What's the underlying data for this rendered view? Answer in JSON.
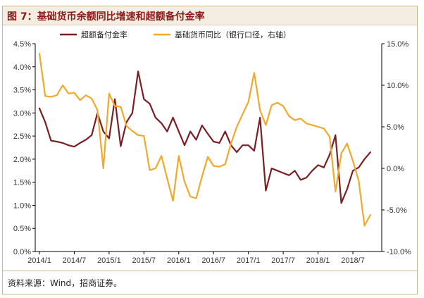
{
  "title": "图 7：基础货币余额同比增速和超额备付金率",
  "source": "资料来源：Wind，招商证券。",
  "chart_data": {
    "type": "line",
    "title": "图 7：基础货币余额同比增速和超额备付金率",
    "xlabel": "",
    "ylabel": "",
    "legend_position": "top",
    "grid": false,
    "x_ticks": [
      "2014/1",
      "2014/7",
      "2015/1",
      "2015/7",
      "2016/1",
      "2016/7",
      "2017/1",
      "2017/7",
      "2018/1",
      "2018/7"
    ],
    "x_range": [
      0,
      58
    ],
    "y_left": {
      "min": 0,
      "max": 4.5,
      "ticks": [
        "0.0%",
        "0.5%",
        "1.0%",
        "1.5%",
        "2.0%",
        "2.5%",
        "3.0%",
        "3.5%",
        "4.0%",
        "4.5%"
      ]
    },
    "y_right": {
      "min": -10,
      "max": 15,
      "ticks": [
        "-10.0%",
        "-5.0%",
        "0.0%",
        "5.0%",
        "10.0%",
        "15.0%"
      ]
    },
    "series": [
      {
        "name": "超额备付金率",
        "axis": "left",
        "color": "#7b1e24",
        "x": [
          0,
          1,
          2,
          3,
          4,
          5,
          6,
          7,
          8,
          9,
          10,
          11,
          12,
          13,
          14,
          15,
          16,
          17,
          18,
          19,
          20,
          21,
          22,
          23,
          24,
          25,
          26,
          27,
          28,
          29,
          30,
          31,
          32,
          33,
          34,
          35,
          36,
          37,
          38,
          39,
          40,
          41,
          42,
          43,
          44,
          45,
          46,
          47,
          48,
          49,
          50,
          51,
          52,
          53,
          54,
          55,
          56,
          57
        ],
        "values": [
          3.1,
          2.8,
          2.4,
          2.38,
          2.35,
          2.3,
          2.27,
          2.35,
          2.42,
          2.52,
          3.0,
          2.6,
          2.45,
          3.3,
          2.28,
          2.8,
          3.0,
          3.9,
          3.3,
          3.2,
          2.9,
          2.78,
          2.6,
          2.9,
          2.6,
          2.3,
          2.6,
          2.42,
          2.73,
          2.55,
          2.38,
          2.35,
          2.6,
          2.3,
          2.15,
          2.3,
          2.3,
          2.18,
          2.9,
          1.32,
          1.8,
          1.75,
          1.7,
          1.65,
          1.75,
          1.55,
          1.6,
          1.75,
          1.87,
          1.82,
          2.1,
          2.52,
          1.05,
          1.35,
          1.75,
          1.82,
          2.0,
          2.15
        ]
      },
      {
        "name": "基础货币同比（银行口径，右轴）",
        "axis": "right",
        "color": "#f0a92c",
        "x": [
          0,
          1,
          2,
          3,
          4,
          5,
          6,
          7,
          8,
          9,
          10,
          11,
          12,
          13,
          14,
          15,
          16,
          17,
          18,
          19,
          20,
          21,
          22,
          23,
          24,
          25,
          26,
          27,
          28,
          29,
          30,
          31,
          32,
          33,
          34,
          35,
          36,
          37,
          38,
          39,
          40,
          41,
          42,
          43,
          44,
          45,
          46,
          47,
          48,
          49,
          50,
          51,
          52,
          53,
          54,
          55,
          56,
          57
        ],
        "values": [
          13.8,
          8.7,
          8.6,
          8.8,
          10.0,
          9.0,
          9.1,
          8.2,
          8.8,
          8.4,
          7.0,
          0.0,
          9.0,
          7.5,
          7.4,
          5.1,
          4.5,
          4.0,
          3.9,
          -0.2,
          0.0,
          1.5,
          -1.2,
          -3.9,
          1.5,
          -1.6,
          -3.4,
          -3.6,
          -1.0,
          1.4,
          0.3,
          0.2,
          0.5,
          3.0,
          5.0,
          6.5,
          8.0,
          11.5,
          7.0,
          5.2,
          7.6,
          7.9,
          7.5,
          6.3,
          5.8,
          6.0,
          5.4,
          5.2,
          5.0,
          4.8,
          3.8,
          -2.8,
          1.8,
          3.0,
          0.9,
          -1.5,
          -6.9,
          -5.6
        ]
      }
    ]
  }
}
